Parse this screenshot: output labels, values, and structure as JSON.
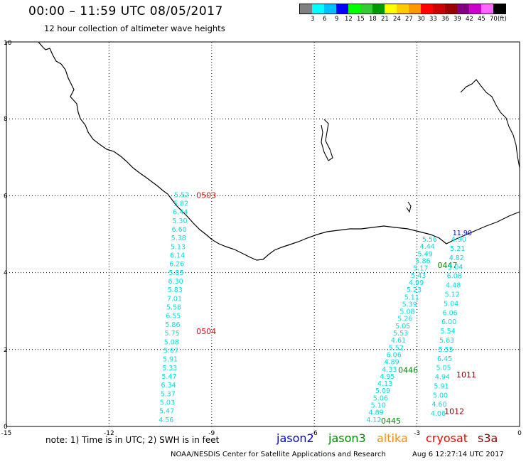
{
  "header": {
    "title": "00:00 – 11:59 UTC 08/05/2017",
    "subtitle": "12 hour collection of altimeter wave heights"
  },
  "colorbar": {
    "colors": [
      "#808080",
      "#00ffff",
      "#00bfff",
      "#0000ff",
      "#00ff00",
      "#33cc33",
      "#009900",
      "#ffff00",
      "#ffcc00",
      "#ff9900",
      "#ff0000",
      "#cc0000",
      "#990000",
      "#800080",
      "#cc00cc",
      "#ff66ff",
      "#000000"
    ],
    "labels": [
      "3",
      "6",
      "9",
      "12",
      "15",
      "18",
      "21",
      "24",
      "27",
      "30",
      "33",
      "36",
      "39",
      "42",
      "45",
      "70",
      "(ft)"
    ]
  },
  "chart_data": {
    "type": "scatter",
    "title": "12 hour collection of altimeter wave heights",
    "xlim": [
      -15,
      0
    ],
    "ylim": [
      0,
      10
    ],
    "xticks": [
      -15,
      -12,
      -9,
      -6,
      -3,
      0
    ],
    "yticks": [
      0,
      2,
      4,
      6,
      8,
      10
    ],
    "xtick_labels": [
      "-15",
      "-12",
      "-9",
      "-6",
      "-3",
      "0"
    ],
    "ytick_labels": [
      "0",
      "2",
      "4",
      "6",
      "8",
      "10"
    ],
    "grid": true,
    "units": "ft",
    "tracks": [
      {
        "satellite": "cryosat",
        "color": "#ff0000",
        "text_color": "#00e0e0",
        "start": [
          -10.1,
          6.02
        ],
        "end": [
          -10.55,
          0.17
        ],
        "values": [
          "5.52",
          "5.82",
          "6.44",
          "5.30",
          "6.60",
          "5.38",
          "5.13",
          "6.14",
          "6.26",
          "5.85",
          "6.30",
          "5.83",
          "7.01",
          "5.58",
          "6.55",
          "5.86",
          "5.75",
          "5.08",
          "5.67",
          "5.91",
          "5.33",
          "5.47",
          "6.34",
          "5.37",
          "5.03",
          "5.47",
          "4.56"
        ],
        "time_labels": [
          {
            "text": "0503",
            "x": -9.45,
            "y": 6.02
          },
          {
            "text": "0504",
            "x": -9.45,
            "y": 2.48
          }
        ]
      },
      {
        "satellite": "jason3",
        "color": "#008800",
        "text_color": "#00e0e0",
        "start": [
          -2.85,
          4.86
        ],
        "end": [
          -4.48,
          0.17
        ],
        "values": [
          "5.56",
          "4.44",
          "5.49",
          "5.86",
          "5.17",
          "5.43",
          "4.99",
          "5.23",
          "5.11",
          "5.39",
          "5.08",
          "5.26",
          "5.05",
          "5.53",
          "4.61",
          "5.52",
          "6.06",
          "4.89",
          "4.33",
          "4.95",
          "4.13",
          "5.09",
          "5.06",
          "5.10",
          "4.89",
          "4.12"
        ],
        "time_labels": [
          {
            "text": "0446",
            "x": -3.55,
            "y": 1.47
          },
          {
            "text": "0445",
            "x": -4.05,
            "y": 0.15
          },
          {
            "text": "0447",
            "x": -2.4,
            "y": 4.2
          }
        ]
      },
      {
        "satellite": "s3a",
        "color": "#8b0000",
        "text_color": "#00e0e0",
        "start": [
          -2.0,
          4.86
        ],
        "end": [
          -2.6,
          0.33
        ],
        "values": [
          "4.90",
          "5.21",
          "4.82",
          "5.04",
          "6.08",
          "4.48",
          "5.12",
          "5.04",
          "6.06",
          "6.00",
          "5.54",
          "5.63",
          "5.55",
          "6.45",
          "5.05",
          "4.94",
          "5.91",
          "5.00",
          "4.60",
          "4.06"
        ],
        "first_value_override": {
          "text": "11.90",
          "color": "#0000cc"
        },
        "time_labels": [
          {
            "text": "1011",
            "x": -1.85,
            "y": 1.35
          },
          {
            "text": "1012",
            "x": -2.2,
            "y": 0.4
          }
        ]
      }
    ]
  },
  "note": "note:  1) Time is in UTC;  2) SWH is in feet",
  "satellites": [
    {
      "name": "jason2",
      "color": "#0000cc"
    },
    {
      "name": "jason3",
      "color": "#008800"
    },
    {
      "name": "altika",
      "color": "#ff8c00"
    },
    {
      "name": "cryosat",
      "color": "#ff0000"
    },
    {
      "name": "s3a",
      "color": "#8b0000"
    }
  ],
  "footer": "NOAA/NESDIS Center for Satellite Applications and Research",
  "footer_time": "Aug  6 12:27:14 UTC 2017"
}
